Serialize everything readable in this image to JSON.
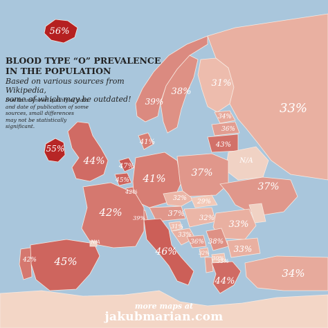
{
  "title_line1": "BLOOD TYPE “O” PREVALENCE",
  "title_line2": "IN THE POPULATION",
  "subtitle_line1": "Based on various sources from Wikipedia,",
  "subtitle_line2": "some of which may be outdated!",
  "note_lines": [
    "Due to unknown quality of data",
    "and date of publication of some",
    "sources, small differences",
    "may not be statistically",
    "significant."
  ],
  "footer_small": "more maps at",
  "footer_big": "jakubmarian.com",
  "colors": {
    "sea": "#a9c6dc",
    "land_low": "#f2c9b8",
    "land_high": "#b52020",
    "outside": "#f3d6c6"
  },
  "regions": [
    {
      "id": "iceland",
      "label": "56%",
      "value": 56
    },
    {
      "id": "ireland",
      "label": "55%",
      "value": 55
    },
    {
      "id": "uk",
      "label": "44%",
      "value": 44
    },
    {
      "id": "norway",
      "label": "39%",
      "value": 39
    },
    {
      "id": "sweden",
      "label": "38%",
      "value": 38
    },
    {
      "id": "finland",
      "label": "31%",
      "value": 31
    },
    {
      "id": "russia",
      "label": "33%",
      "value": 33
    },
    {
      "id": "estonia",
      "label": "34%",
      "value": 34
    },
    {
      "id": "latvia",
      "label": "36%",
      "value": 36
    },
    {
      "id": "lithuania",
      "label": "43%",
      "value": 43
    },
    {
      "id": "belarus",
      "label": "N/A",
      "value": null
    },
    {
      "id": "denmark",
      "label": "41%",
      "value": 41
    },
    {
      "id": "netherlands",
      "label": "47%",
      "value": 47
    },
    {
      "id": "belgium",
      "label": "45%",
      "value": 45
    },
    {
      "id": "luxembourg",
      "label": "42%",
      "value": 42
    },
    {
      "id": "germany",
      "label": "41%",
      "value": 41
    },
    {
      "id": "poland",
      "label": "37%",
      "value": 37
    },
    {
      "id": "ukraine",
      "label": "37%",
      "value": 37
    },
    {
      "id": "czechia",
      "label": "32%",
      "value": 32
    },
    {
      "id": "slovakia",
      "label": "29%",
      "value": 29
    },
    {
      "id": "austria",
      "label": "37%",
      "value": 37
    },
    {
      "id": "hungary",
      "label": "32%",
      "value": 32
    },
    {
      "id": "switzerland",
      "label": "39%",
      "value": 39
    },
    {
      "id": "moldova",
      "label": "",
      "value": null
    },
    {
      "id": "romania",
      "label": "33%",
      "value": 33
    },
    {
      "id": "slovenia",
      "label": "31%",
      "value": 31
    },
    {
      "id": "croatia",
      "label": "33%",
      "value": 33
    },
    {
      "id": "serbia",
      "label": "38%",
      "value": 38
    },
    {
      "id": "bosnia",
      "label": "36%",
      "value": 36
    },
    {
      "id": "bulgaria",
      "label": "33%",
      "value": 33
    },
    {
      "id": "montenegro",
      "label": "32%",
      "value": 32
    },
    {
      "id": "macedonia",
      "label": "30%",
      "value": 30
    },
    {
      "id": "albania",
      "label": "35%",
      "value": 35
    },
    {
      "id": "greece",
      "label": "44%",
      "value": 44
    },
    {
      "id": "turkey",
      "label": "34%",
      "value": 34
    },
    {
      "id": "france",
      "label": "42%",
      "value": 42
    },
    {
      "id": "spain",
      "label": "45%",
      "value": 45
    },
    {
      "id": "portugal",
      "label": "42%",
      "value": 42
    },
    {
      "id": "andorra",
      "label": "N/A",
      "value": null
    },
    {
      "id": "italy",
      "label": "46%",
      "value": 46
    }
  ]
}
